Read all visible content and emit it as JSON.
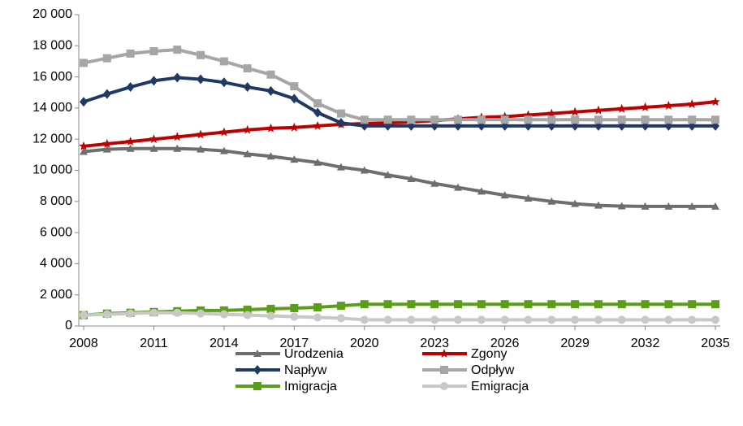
{
  "chart_data": {
    "type": "line",
    "x": [
      2008,
      2009,
      2010,
      2011,
      2012,
      2013,
      2014,
      2015,
      2016,
      2017,
      2018,
      2019,
      2020,
      2021,
      2022,
      2023,
      2024,
      2025,
      2026,
      2027,
      2028,
      2029,
      2030,
      2031,
      2032,
      2033,
      2034,
      2035
    ],
    "xlim": [
      2008,
      2035
    ],
    "xticks": [
      2008,
      2011,
      2014,
      2017,
      2020,
      2023,
      2026,
      2029,
      2032,
      2035
    ],
    "ylim": [
      0,
      20000
    ],
    "yticks": [
      0,
      {
        "value": 2000,
        "label": "2 000"
      },
      {
        "value": 4000,
        "label": "4 000"
      },
      {
        "value": 6000,
        "label": "6 000"
      },
      {
        "value": 8000,
        "label": "8 000"
      },
      {
        "value": 10000,
        "label": "10 000"
      },
      {
        "value": 12000,
        "label": "12 000"
      },
      {
        "value": 14000,
        "label": "14 000"
      },
      {
        "value": 16000,
        "label": "16 000"
      },
      {
        "value": 18000,
        "label": "18 000"
      },
      {
        "value": 20000,
        "label": "20 000"
      }
    ],
    "grid": false,
    "legend": "bottom",
    "series": [
      {
        "name": "Urodzenia",
        "color": "#6e6e6e",
        "marker": "triangle",
        "values": [
          11200,
          11350,
          11400,
          11400,
          11400,
          11350,
          11250,
          11050,
          10900,
          10700,
          10500,
          10200,
          10000,
          9700,
          9450,
          9150,
          8900,
          8650,
          8400,
          8200,
          8000,
          7850,
          7750,
          7700,
          7680,
          7680,
          7680,
          7680
        ]
      },
      {
        "name": "Zgony",
        "color": "#c00000",
        "marker": "star",
        "values": [
          11550,
          11700,
          11850,
          12000,
          12150,
          12300,
          12450,
          12600,
          12700,
          12750,
          12850,
          12950,
          13000,
          13050,
          13100,
          13200,
          13300,
          13400,
          13450,
          13550,
          13650,
          13750,
          13850,
          13950,
          14050,
          14150,
          14250,
          14400
        ]
      },
      {
        "name": "Napływ",
        "color": "#1f3864",
        "marker": "diamond",
        "values": [
          14400,
          14900,
          15350,
          15750,
          15950,
          15850,
          15650,
          15350,
          15100,
          14600,
          13700,
          13050,
          12850,
          12850,
          12850,
          12850,
          12850,
          12850,
          12850,
          12850,
          12850,
          12850,
          12850,
          12850,
          12850,
          12850,
          12850,
          12850
        ]
      },
      {
        "name": "Odpływ",
        "color": "#a6a6a6",
        "marker": "square",
        "values": [
          16900,
          17200,
          17500,
          17650,
          17750,
          17400,
          17000,
          16550,
          16150,
          15400,
          14300,
          13650,
          13250,
          13250,
          13250,
          13250,
          13250,
          13250,
          13250,
          13250,
          13250,
          13250,
          13250,
          13250,
          13250,
          13250,
          13250,
          13250
        ]
      },
      {
        "name": "Imigracja",
        "color": "#5a9e1a",
        "marker": "square",
        "values": [
          700,
          800,
          850,
          900,
          950,
          1000,
          1000,
          1050,
          1100,
          1150,
          1200,
          1300,
          1400,
          1400,
          1400,
          1400,
          1400,
          1400,
          1400,
          1400,
          1400,
          1400,
          1400,
          1400,
          1400,
          1400,
          1400,
          1400
        ]
      },
      {
        "name": "Emigracja",
        "color": "#c8c8c8",
        "marker": "circle",
        "values": [
          700,
          750,
          800,
          850,
          850,
          800,
          750,
          700,
          650,
          600,
          550,
          500,
          400,
          400,
          400,
          400,
          400,
          400,
          400,
          400,
          400,
          400,
          400,
          400,
          400,
          400,
          400,
          400
        ]
      }
    ]
  }
}
